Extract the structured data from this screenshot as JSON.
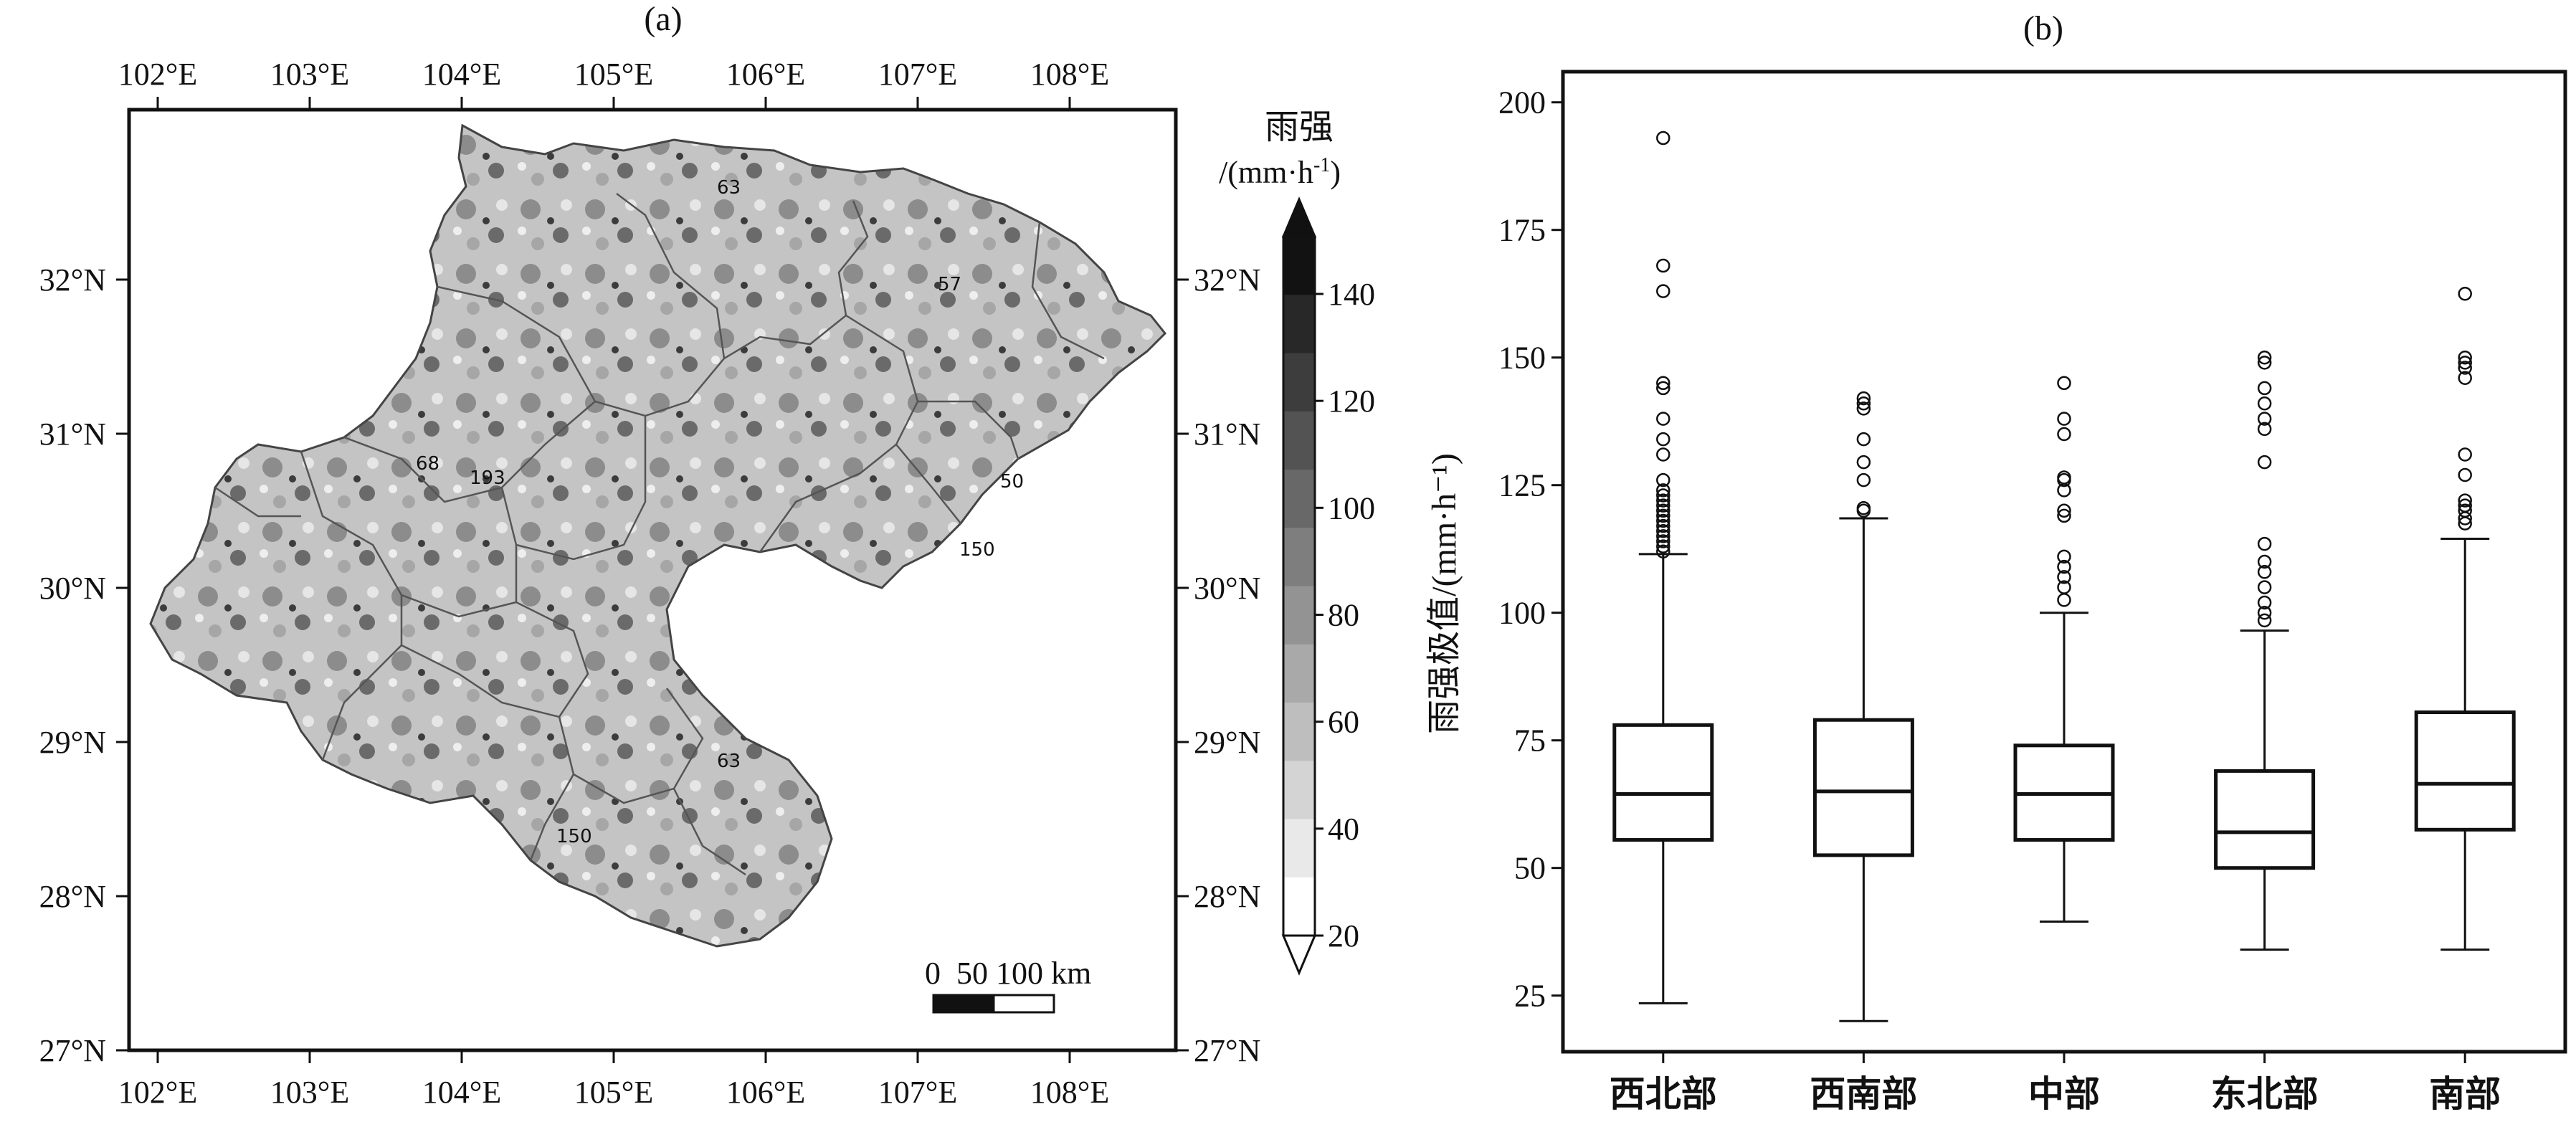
{
  "panel_a": {
    "label": "(a)",
    "lon_ticks": [
      "102°E",
      "103°E",
      "104°E",
      "105°E",
      "106°E",
      "107°E",
      "108°E"
    ],
    "lat_ticks": [
      "32°N",
      "31°N",
      "30°N",
      "29°N",
      "28°N",
      "27°N"
    ],
    "colorbar_title": "雨强",
    "colorbar_unit": "/(mm·h",
    "colorbar_unit_sup": "-1",
    "colorbar_unit_close": ")",
    "colorbar_ticks": [
      "140",
      "120",
      "100",
      "80",
      "60",
      "40",
      "20"
    ],
    "scale_bar_labels": "0  50 100 km",
    "station_labels": [
      "63",
      "57",
      "68",
      "193",
      "50",
      "150",
      "63",
      "150"
    ]
  },
  "chart_data": {
    "type": "box",
    "title": "(b)",
    "ylabel": "雨强极值/(mm·h⁻¹)",
    "ylim": [
      14,
      206
    ],
    "yticks": [
      25,
      50,
      75,
      100,
      125,
      150,
      175,
      200
    ],
    "ytick_labels": [
      "25",
      "50",
      "75",
      "100",
      "125",
      "150",
      "175",
      "200"
    ],
    "categories": [
      "西北部",
      "西南部",
      "中部",
      "东北部",
      "南部"
    ],
    "boxes": [
      {
        "whislo": 23.5,
        "q1": 55.5,
        "med": 64.5,
        "q3": 78,
        "whishi": 111.5,
        "fliers": [
          112,
          113,
          114,
          115,
          116,
          117,
          118,
          119,
          120,
          121,
          122,
          123,
          124,
          126,
          131,
          134,
          138,
          144,
          145,
          163,
          168,
          193
        ]
      },
      {
        "whislo": 20,
        "q1": 52.5,
        "med": 65,
        "q3": 79,
        "whishi": 118.5,
        "fliers": [
          120,
          120.5,
          126,
          129.5,
          134,
          140,
          141,
          142
        ]
      },
      {
        "whislo": 39.5,
        "q1": 55.5,
        "med": 64.5,
        "q3": 74,
        "whishi": 100,
        "fliers": [
          102.5,
          105,
          107,
          109,
          111,
          119,
          120,
          124,
          126,
          126.5,
          135,
          138,
          145
        ]
      },
      {
        "whislo": 34,
        "q1": 50,
        "med": 57,
        "q3": 69,
        "whishi": 96.5,
        "fliers": [
          98.5,
          100,
          102,
          105,
          108,
          110,
          113.5,
          129.5,
          136,
          138,
          141,
          144,
          149,
          150
        ]
      },
      {
        "whislo": 34,
        "q1": 57.5,
        "med": 66.5,
        "q3": 80.5,
        "whishi": 114.5,
        "fliers": [
          117.5,
          118.5,
          120,
          121,
          122,
          127,
          131,
          146,
          148,
          149,
          150,
          162.5
        ]
      }
    ]
  }
}
